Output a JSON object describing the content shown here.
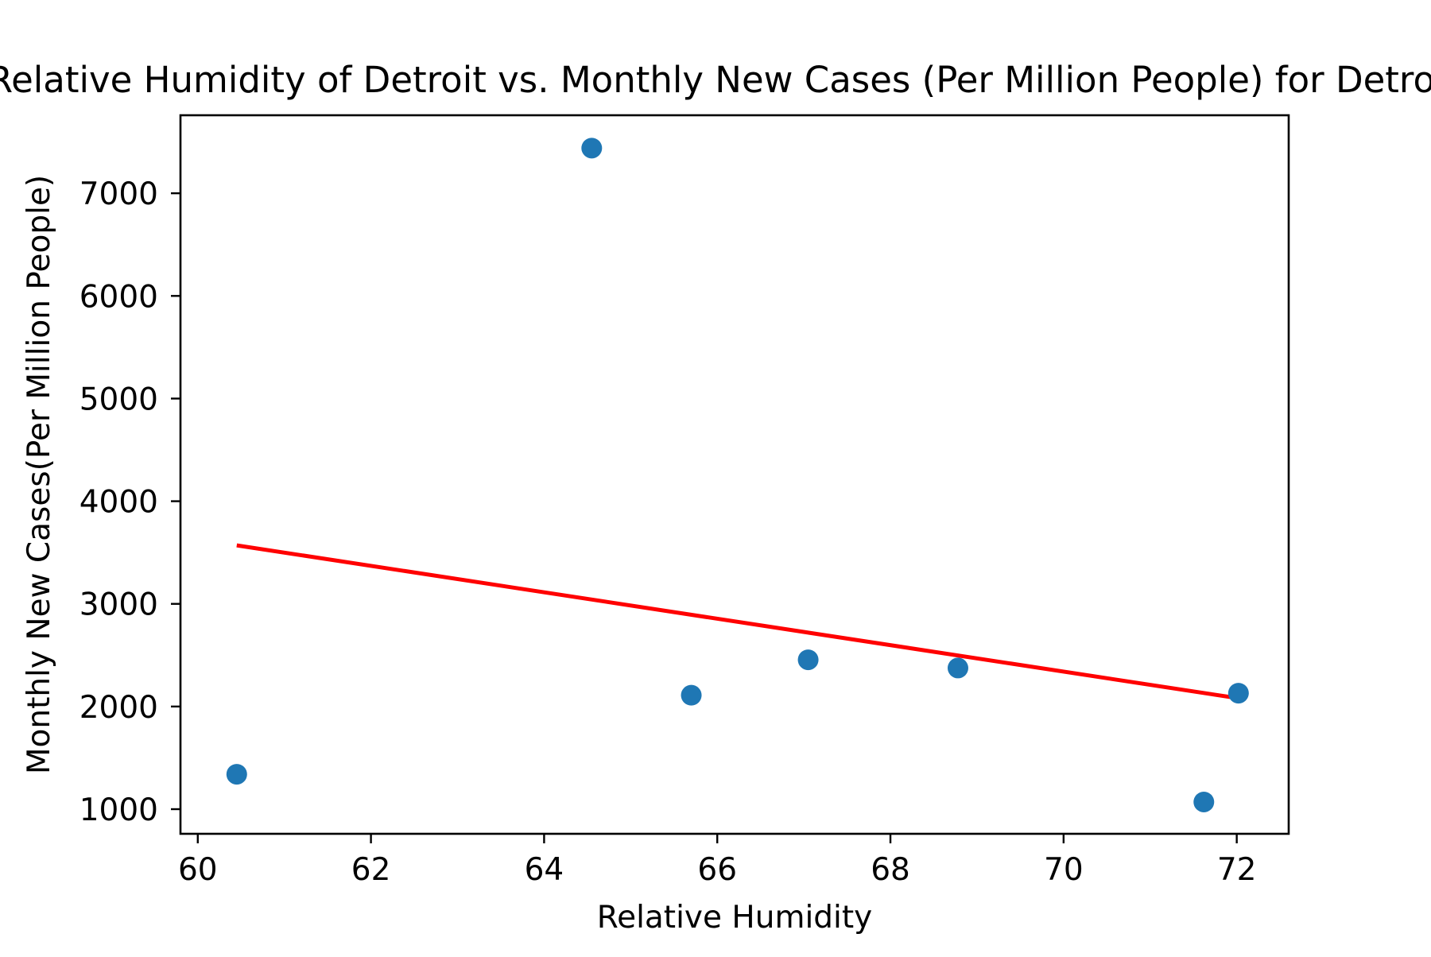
{
  "chart_data": {
    "type": "scatter",
    "title": "Relative Humidity of Detroit vs. Monthly New Cases (Per Million People) for Detroit",
    "xlabel": "Relative Humidity",
    "ylabel": "Monthly New Cases(Per Million People)",
    "xlim": [
      59.8,
      72.6
    ],
    "ylim": [
      760,
      7760
    ],
    "x_ticks": [
      60,
      62,
      64,
      66,
      68,
      70,
      72
    ],
    "y_ticks": [
      1000,
      2000,
      3000,
      4000,
      5000,
      6000,
      7000
    ],
    "grid": false,
    "series": [
      {
        "type": "scatter",
        "color": "#1f77b4",
        "points": [
          {
            "x": 60.45,
            "y": 1340
          },
          {
            "x": 64.55,
            "y": 7440
          },
          {
            "x": 65.7,
            "y": 2110
          },
          {
            "x": 67.05,
            "y": 2455
          },
          {
            "x": 68.78,
            "y": 2375
          },
          {
            "x": 71.62,
            "y": 1070
          },
          {
            "x": 72.02,
            "y": 2130
          }
        ]
      },
      {
        "type": "line",
        "color": "#ff0000",
        "points": [
          {
            "x": 60.45,
            "y": 3570
          },
          {
            "x": 72.02,
            "y": 2080
          }
        ]
      }
    ]
  }
}
